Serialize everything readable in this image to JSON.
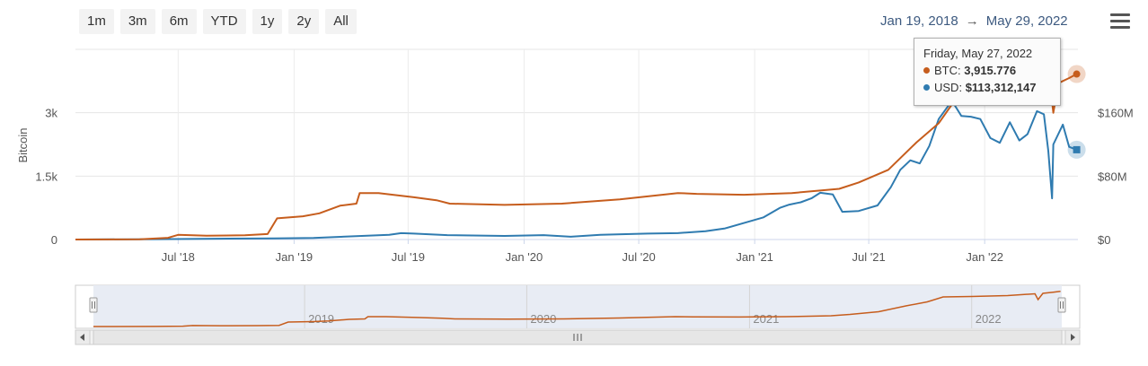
{
  "range_buttons": [
    "1m",
    "3m",
    "6m",
    "YTD",
    "1y",
    "2y",
    "All"
  ],
  "date_range": {
    "from": "Jan 19, 2018",
    "arrow": "→",
    "to": "May 29, 2022"
  },
  "menu_icon": "hamburger-menu-icon",
  "tooltip": {
    "date": "Friday, May 27, 2022",
    "btc_label": "BTC:",
    "btc_value": "3,915.776",
    "usd_label": "USD:",
    "usd_value": "$113,312,147"
  },
  "colors": {
    "btc": "#c65d1d",
    "usd": "#2f7bb0",
    "navigator_bg": "#e6eaf3"
  },
  "chart_data": {
    "type": "line",
    "x_ticks": [
      "Jul '18",
      "Jan '19",
      "Jul '19",
      "Jan '20",
      "Jul '20",
      "Jan '21",
      "Jul '21",
      "Jan '22"
    ],
    "y_left": {
      "label": "Bitcoin",
      "ticks": [
        "0",
        "1.5k",
        "3k"
      ],
      "range": [
        0,
        4500
      ]
    },
    "y_right": {
      "ticks": [
        "$0",
        "$80M",
        "$160M"
      ],
      "range": [
        0,
        240
      ]
    },
    "series": [
      {
        "name": "BTC",
        "axis": "left",
        "color": "#c65d1d",
        "points": [
          [
            "2018-01-19",
            0
          ],
          [
            "2018-05-01",
            5
          ],
          [
            "2018-06-15",
            40
          ],
          [
            "2018-07-01",
            110
          ],
          [
            "2018-08-15",
            90
          ],
          [
            "2018-10-15",
            100
          ],
          [
            "2018-11-20",
            130
          ],
          [
            "2018-12-05",
            500
          ],
          [
            "2019-01-15",
            550
          ],
          [
            "2019-02-10",
            620
          ],
          [
            "2019-03-15",
            800
          ],
          [
            "2019-04-10",
            850
          ],
          [
            "2019-04-15",
            1100
          ],
          [
            "2019-05-15",
            1100
          ],
          [
            "2019-07-10",
            1000
          ],
          [
            "2019-08-15",
            930
          ],
          [
            "2019-09-05",
            850
          ],
          [
            "2019-12-01",
            820
          ],
          [
            "2020-03-01",
            850
          ],
          [
            "2020-06-01",
            950
          ],
          [
            "2020-09-01",
            1100
          ],
          [
            "2020-10-01",
            1080
          ],
          [
            "2020-12-15",
            1060
          ],
          [
            "2021-03-01",
            1100
          ],
          [
            "2021-05-15",
            1200
          ],
          [
            "2021-06-15",
            1350
          ],
          [
            "2021-08-01",
            1650
          ],
          [
            "2021-09-15",
            2300
          ],
          [
            "2021-10-20",
            2750
          ],
          [
            "2021-11-15",
            3300
          ],
          [
            "2022-01-01",
            3350
          ],
          [
            "2022-03-01",
            3450
          ],
          [
            "2022-04-15",
            3650
          ],
          [
            "2022-04-20",
            3000
          ],
          [
            "2022-04-28",
            3700
          ],
          [
            "2022-05-15",
            3820
          ],
          [
            "2022-05-27",
            3915.776
          ]
        ]
      },
      {
        "name": "USD",
        "axis": "right",
        "color": "#2f7bb0",
        "points": [
          [
            "2018-01-19",
            0
          ],
          [
            "2018-06-01",
            0.5
          ],
          [
            "2018-12-01",
            1.5
          ],
          [
            "2019-02-01",
            2
          ],
          [
            "2019-04-01",
            4
          ],
          [
            "2019-06-01",
            6
          ],
          [
            "2019-06-20",
            8
          ],
          [
            "2019-07-10",
            7.5
          ],
          [
            "2019-09-01",
            5.5
          ],
          [
            "2019-12-01",
            4.5
          ],
          [
            "2020-02-01",
            5.5
          ],
          [
            "2020-03-15",
            3.5
          ],
          [
            "2020-05-01",
            6
          ],
          [
            "2020-07-15",
            7.5
          ],
          [
            "2020-09-01",
            8
          ],
          [
            "2020-10-15",
            10.5
          ],
          [
            "2020-11-15",
            14
          ],
          [
            "2020-12-20",
            22
          ],
          [
            "2021-01-15",
            28
          ],
          [
            "2021-02-10",
            40
          ],
          [
            "2021-02-25",
            44
          ],
          [
            "2021-03-15",
            47
          ],
          [
            "2021-04-01",
            52
          ],
          [
            "2021-04-15",
            59
          ],
          [
            "2021-05-05",
            57
          ],
          [
            "2021-05-20",
            35
          ],
          [
            "2021-06-15",
            36
          ],
          [
            "2021-07-15",
            43
          ],
          [
            "2021-08-05",
            66
          ],
          [
            "2021-08-20",
            88
          ],
          [
            "2021-09-05",
            100
          ],
          [
            "2021-09-20",
            96
          ],
          [
            "2021-10-05",
            118
          ],
          [
            "2021-10-20",
            152
          ],
          [
            "2021-11-10",
            175
          ],
          [
            "2021-11-25",
            156
          ],
          [
            "2021-12-10",
            155
          ],
          [
            "2021-12-25",
            152
          ],
          [
            "2022-01-10",
            128
          ],
          [
            "2022-01-25",
            122
          ],
          [
            "2022-02-10",
            148
          ],
          [
            "2022-02-25",
            125
          ],
          [
            "2022-03-10",
            133
          ],
          [
            "2022-03-25",
            162
          ],
          [
            "2022-04-05",
            158
          ],
          [
            "2022-04-12",
            112
          ],
          [
            "2022-04-18",
            52
          ],
          [
            "2022-04-20",
            120
          ],
          [
            "2022-05-05",
            145
          ],
          [
            "2022-05-15",
            117
          ],
          [
            "2022-05-27",
            113.312
          ]
        ]
      }
    ],
    "navigator": {
      "year_labels": [
        "2019",
        "2020",
        "2021",
        "2022"
      ]
    }
  }
}
